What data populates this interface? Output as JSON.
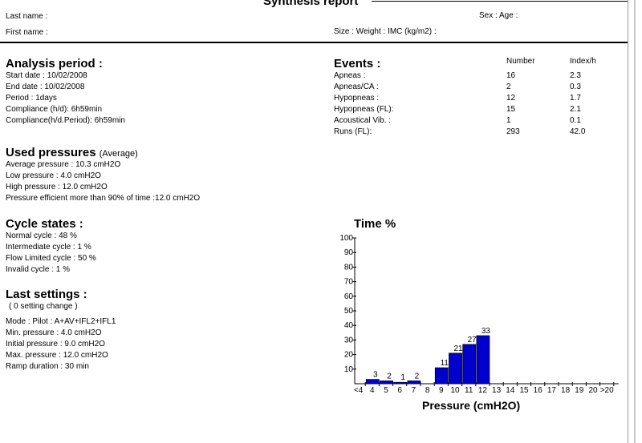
{
  "report": {
    "title": "Synthesis report"
  },
  "patient": {
    "last_name_label": "Last name :",
    "first_name_label": "First name :",
    "sex_age_label": "Sex :  Age :",
    "size_weight_label": "Size :  Weight :  IMC (kg/m2) :"
  },
  "analysis": {
    "heading": "Analysis period :",
    "lines": [
      "Start date : 10/02/2008",
      "End date : 10/02/2008",
      "Period : 1days",
      "Compliance (h/d): 6h59min",
      "Compliance(h/d.Period): 6h59min"
    ]
  },
  "events": {
    "heading": "Events :",
    "col_number": "Number",
    "col_index": "Index/h",
    "rows": [
      {
        "label": "Apneas :",
        "number": "16",
        "index": "2.3"
      },
      {
        "label": "Apneas/CA :",
        "number": "2",
        "index": "0.3"
      },
      {
        "label": "Hypopneas :",
        "number": "12",
        "index": "1.7"
      },
      {
        "label": "Hypopneas (FL):",
        "number": "15",
        "index": "2.1"
      },
      {
        "label": "Acoustical Vib. :",
        "number": "1",
        "index": "0.1"
      },
      {
        "label": "Runs (FL):",
        "number": "293",
        "index": "42.0"
      }
    ]
  },
  "pressures": {
    "heading": "Used pressures",
    "heading_note": "(Average)",
    "lines": [
      "Average pressure : 10.3 cmH2O",
      "Low pressure : 4.0 cmH2O",
      "High pressure : 12.0 cmH2O",
      "Pressure efficient more than 90% of time :12.0 cmH2O"
    ]
  },
  "cycles": {
    "heading": "Cycle states :",
    "lines": [
      "Normal cycle : 48 %",
      "Intermediate cycle : 1 %",
      "Flow Limited cycle : 50 %",
      "Invalid cycle : 1 %"
    ]
  },
  "settings": {
    "heading": "Last settings :",
    "note": "( 0 setting change )",
    "lines": [
      "Mode : Pilot : A+AV+IFL2+IFL1",
      "Min. pressure : 4.0 cmH2O",
      "Initial pressure : 9.0 cmH2O",
      "Max. pressure : 12.0 cmH2O",
      "Ramp duration : 30 min"
    ]
  },
  "chart_data": {
    "type": "bar",
    "title": "Time %",
    "xlabel": "Pressure (cmH2O)",
    "ylabel": "",
    "ylim": [
      0,
      100
    ],
    "yticks": [
      "10",
      "20",
      "30",
      "40",
      "50",
      "60",
      "70",
      "80",
      "90",
      "100"
    ],
    "categories": [
      "<4",
      "4",
      "5",
      "6",
      "7",
      "8",
      "9",
      "10",
      "11",
      "12",
      "13",
      "14",
      "15",
      "16",
      "17",
      "18",
      "19",
      "20",
      ">20"
    ],
    "values": [
      0,
      3,
      2,
      1,
      2,
      0,
      11,
      21,
      27,
      33,
      0,
      0,
      0,
      0,
      0,
      0,
      0,
      0,
      0
    ],
    "bar_labels": [
      "",
      "3",
      "2",
      "1",
      "2",
      "",
      "11",
      "21",
      "27",
      "33",
      "",
      "",
      "",
      "",
      "",
      "",
      "",
      "",
      ""
    ],
    "bar_color": "#0000cc",
    "grid": false
  }
}
